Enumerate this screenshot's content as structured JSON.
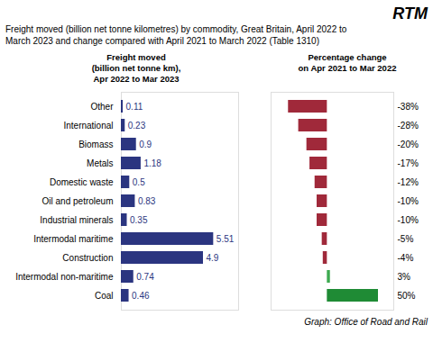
{
  "chart_data": [
    {
      "type": "bar",
      "title": "Freight moved (billion net tonne kilometres) by commodity, Great Britain, April 2022 to\nMarch 2023 and change compared with April 2021 to March 2022 (Table 1310)",
      "subtitle": "Freight moved\n(billion net tonne km),\nApr 2022 to Mar 2023",
      "annotations": [
        "RTM",
        "Graph: Office of Road and Rail"
      ],
      "categories": [
        "Other",
        "International",
        "Biomass",
        "Metals",
        "Domestic waste",
        "Oil and petroleum",
        "Industrial minerals",
        "Intermodal maritime",
        "Construction",
        "Intermodal non-maritime",
        "Coal"
      ],
      "values": [
        0.11,
        0.23,
        0.9,
        1.18,
        0.5,
        0.83,
        0.35,
        5.51,
        4.9,
        0.74,
        0.46
      ],
      "color": "#2B3580",
      "orientation": "horizontal",
      "xlim": [
        0,
        7.0
      ],
      "data_labels": true,
      "tick_labels": "y",
      "grid": false
    },
    {
      "type": "bar",
      "subtitle": "Percentage change\non Apr 2021 to Mar 2022",
      "categories": [
        "Other",
        "International",
        "Biomass",
        "Metals",
        "Domestic waste",
        "Oil and petroleum",
        "Industrial minerals",
        "Intermodal maritime",
        "Construction",
        "Intermodal non-maritime",
        "Coal"
      ],
      "values": [
        -38,
        -28,
        -20,
        -17,
        -12,
        -10,
        -10,
        -5,
        -4,
        3,
        50
      ],
      "value_labels": [
        "-38%",
        "-28%",
        "-20%",
        "-17%",
        "-12%",
        "-10%",
        "-10%",
        "-5%",
        "-4%",
        "3%",
        "50%"
      ],
      "colors": [
        "#A0293A",
        "#A0293A",
        "#A0293A",
        "#A0293A",
        "#A0293A",
        "#A0293A",
        "#A0293A",
        "#A0293A",
        "#A0293A",
        "#3DAA50",
        "#1F8B35"
      ],
      "orientation": "horizontal",
      "xlim": [
        -55,
        65
      ],
      "data_labels": true,
      "tick_labels": false,
      "grid": false
    }
  ]
}
